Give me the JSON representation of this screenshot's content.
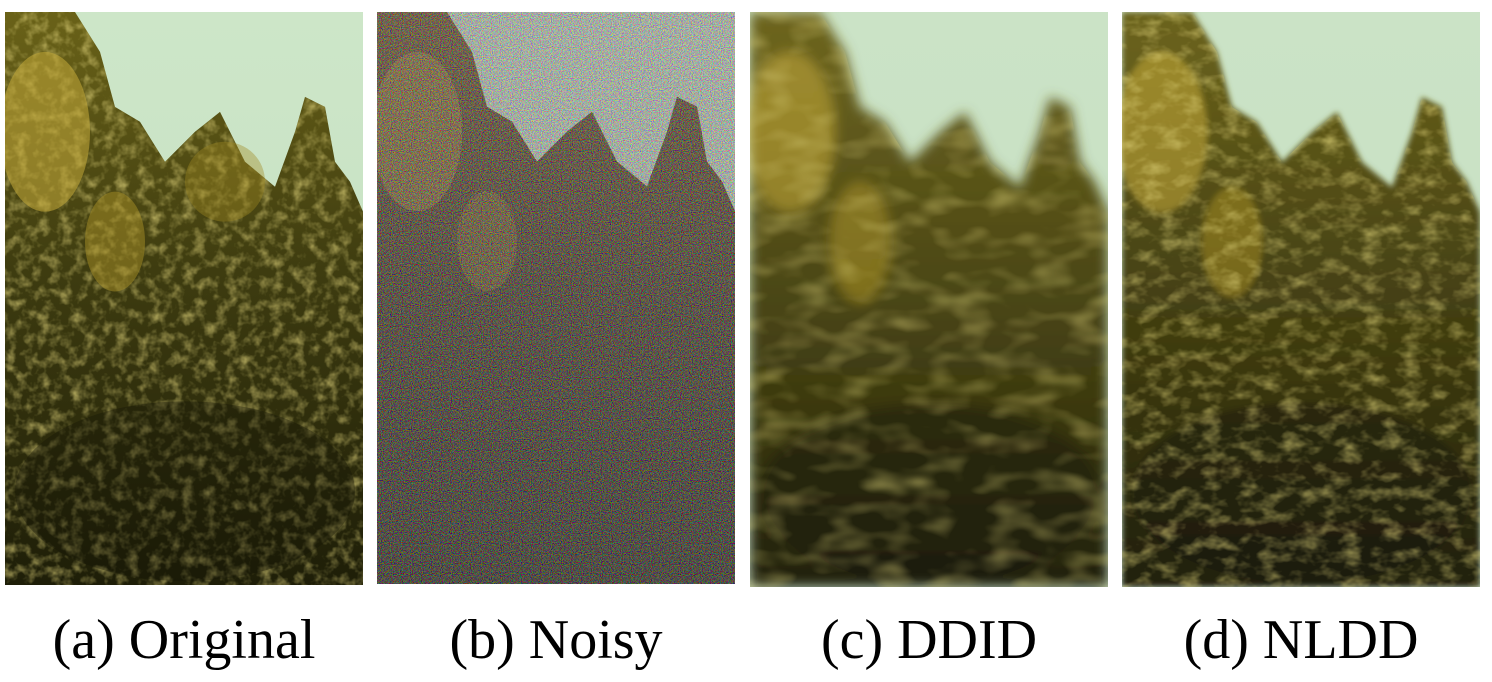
{
  "figure": {
    "panels": [
      {
        "id": "a",
        "caption": "(a) Original",
        "scene": "tree-foliage",
        "treatment": "original"
      },
      {
        "id": "b",
        "caption": "(b) Noisy",
        "scene": "tree-foliage",
        "treatment": "noisy"
      },
      {
        "id": "c",
        "caption": "(c) DDID",
        "scene": "tree-foliage",
        "treatment": "denoised-smooth"
      },
      {
        "id": "d",
        "caption": "(d) NLDD",
        "scene": "tree-foliage",
        "treatment": "denoised-detailed"
      }
    ],
    "colors": {
      "sky": "#c9e2c4",
      "foliage_dark": "#2a2a0c",
      "foliage_mid": "#5c5a18",
      "foliage_light": "#b4a22e",
      "highlight": "#e2c85a"
    }
  }
}
